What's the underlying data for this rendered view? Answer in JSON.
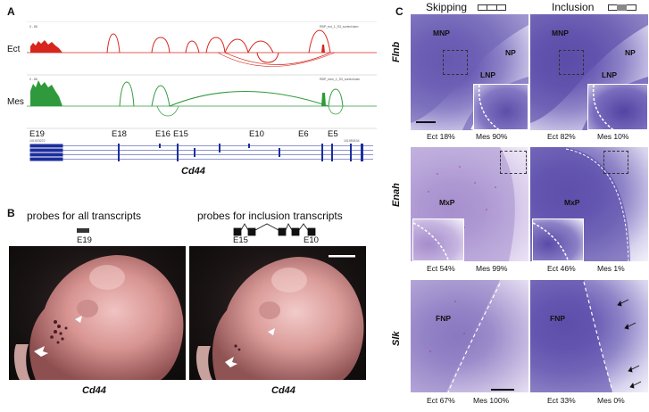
{
  "panel_a": {
    "letter": "A",
    "track_labels": [
      "Ect",
      "Mes"
    ],
    "track_headers": [
      "0 - 86",
      "0 - 86"
    ],
    "track_sublabels": [
      "RBP_ect_1_S3_sorted.bam",
      "RBP_mes_1_S3_sorted.bam"
    ],
    "exon_labels": [
      "E19",
      "E18",
      "E16",
      "E15",
      "E10",
      "E6",
      "E5"
    ],
    "coord_left": "101923222",
    "coord_right": "101950434",
    "gene": "Cd44",
    "colors": {
      "ect": "#d6261e",
      "mes": "#2e9a3b",
      "exon": "#1c2d9c"
    }
  },
  "panel_b": {
    "letter": "B",
    "left_title": "probes for all transcripts",
    "right_title": "probes for inclusion transcripts",
    "left_probe_label": "E19",
    "right_probe_labels": [
      "E15",
      "E10"
    ],
    "left_caption": "Cd44",
    "right_caption": "Cd44"
  },
  "panel_c": {
    "letter": "C",
    "header_skipping": "Skipping",
    "header_inclusion": "Inclusion",
    "rows": [
      {
        "gene": "Flnb",
        "left": {
          "labels": [
            "MNP",
            "NP",
            "LNP"
          ],
          "ect": "Ect 18%",
          "mes": "Mes 90%"
        },
        "right": {
          "labels": [
            "MNP",
            "NP",
            "LNP"
          ],
          "ect": "Ect 82%",
          "mes": "Mes 10%"
        }
      },
      {
        "gene": "Enah",
        "left": {
          "labels": [
            "MxP"
          ],
          "ect": "Ect 54%",
          "mes": "Mes 99%"
        },
        "right": {
          "labels": [
            "MxP"
          ],
          "ect": "Ect 46%",
          "mes": "Mes 1%"
        }
      },
      {
        "gene": "Slk",
        "left": {
          "labels": [
            "FNP"
          ],
          "ect": "Ect 67%",
          "mes": "Mes 100%"
        },
        "right": {
          "labels": [
            "FNP"
          ],
          "ect": "Ect 33%",
          "mes": "Mes 0%"
        }
      }
    ]
  }
}
